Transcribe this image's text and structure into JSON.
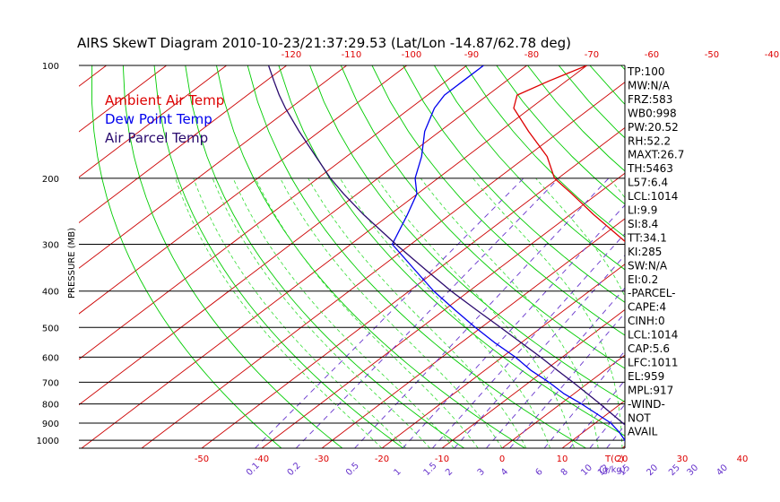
{
  "title": "AIRS SkewT Diagram 2010-10-23/21:37:29.53 (Lat/Lon -14.87/62.78 deg)",
  "ylabel": "PRESSURE (MB)",
  "colors": {
    "ambient": "#dd0000",
    "dewpoint": "#0000ee",
    "parcel": "#2a0a6e",
    "isotherm": "#cc0000",
    "dry_adiabat": "#00cc00",
    "moist_adiabat": "#33dd33",
    "mixing_ratio": "#6633cc",
    "grid": "#000000"
  },
  "legend": [
    {
      "label": "Ambient Air Temp",
      "color": "#dd0000"
    },
    {
      "label": "Dew Point Temp",
      "color": "#0000ee"
    },
    {
      "label": "Air Parcel Temp",
      "color": "#2a0a6e"
    }
  ],
  "indices": [
    "TP:100",
    "MW:N/A",
    "FRZ:583",
    "WB0:998",
    "PW:20.52",
    "RH:52.2",
    "MAXT:26.7",
    "TH:5463",
    "L57:6.4",
    "LCL:1014",
    "LI:9.9",
    "SI:8.4",
    "TT:34.1",
    "KI:285",
    "SW:N/A",
    "EI:0.2",
    "-PARCEL-",
    "CAPE:4",
    "CINH:0",
    "LCL:1014",
    "CAP:5.6",
    "LFC:1011",
    "EL:959",
    "MPL:917",
    "-WIND-",
    "NOT",
    "AVAIL"
  ],
  "chart_data": {
    "type": "line",
    "title": "AIRS SkewT Diagram 2010-10-23/21:37:29.53 (Lat/Lon -14.87/62.78 deg)",
    "ylabel": "PRESSURE (MB)",
    "y_scale": "log",
    "ylim": [
      1050,
      100
    ],
    "y_ticks": [
      100,
      200,
      300,
      400,
      500,
      600,
      700,
      800,
      900,
      1000
    ],
    "y_tick_labels": [
      "100",
      "200",
      "300",
      "400",
      "500",
      "600",
      "700",
      "800",
      "900",
      "1000"
    ],
    "top_temp_ticks": [
      -120,
      -110,
      -100,
      -90,
      -80,
      -70,
      -60,
      -50,
      -40
    ],
    "bottom_temp_ticks": [
      -50,
      -40,
      -30,
      -20,
      -10,
      0,
      10,
      20,
      30,
      40
    ],
    "bottom_temp_unit": "T(C)",
    "mixing_ratio_labels": [
      "0.1",
      "0.2",
      "0.5",
      "1",
      "1.5",
      "2",
      "3",
      "4",
      "6",
      "8",
      "10",
      "12",
      "15",
      "20",
      "25",
      "30",
      "40"
    ],
    "mixing_ratio_unit": "(g/kg)",
    "series": [
      {
        "name": "Ambient Air Temp",
        "points": [
          [
            1012,
            22.9
          ],
          [
            1000,
            22.0
          ],
          [
            950,
            20.5
          ],
          [
            900,
            22.5
          ],
          [
            850,
            23.6
          ],
          [
            800,
            24.0
          ],
          [
            750,
            22.5
          ],
          [
            700,
            19.1
          ],
          [
            650,
            15.2
          ],
          [
            600,
            11.4
          ],
          [
            550,
            7.5
          ],
          [
            500,
            3.3
          ],
          [
            450,
            -1.4
          ],
          [
            400,
            -6.8
          ],
          [
            350,
            -14.8
          ],
          [
            300,
            -23.8
          ],
          [
            250,
            -36.1
          ],
          [
            220,
            -44.3
          ],
          [
            200,
            -50.6
          ],
          [
            175,
            -56.6
          ],
          [
            150,
            -65.2
          ],
          [
            130,
            -72.8
          ],
          [
            120,
            -75.1
          ],
          [
            110,
            -72.9
          ],
          [
            100,
            -70.0
          ]
        ]
      },
      {
        "name": "Dew Point Temp",
        "points": [
          [
            1012,
            19.2
          ],
          [
            1000,
            18.7
          ],
          [
            950,
            15.9
          ],
          [
            900,
            12.6
          ],
          [
            850,
            8.2
          ],
          [
            800,
            3.5
          ],
          [
            750,
            -1.8
          ],
          [
            700,
            -6.7
          ],
          [
            650,
            -12.4
          ],
          [
            600,
            -17.8
          ],
          [
            550,
            -24.3
          ],
          [
            500,
            -31.0
          ],
          [
            450,
            -38.1
          ],
          [
            400,
            -45.9
          ],
          [
            350,
            -53.9
          ],
          [
            300,
            -63.1
          ],
          [
            250,
            -67.1
          ],
          [
            220,
            -70.1
          ],
          [
            200,
            -73.8
          ],
          [
            175,
            -77.5
          ],
          [
            150,
            -82.5
          ],
          [
            130,
            -86.0
          ],
          [
            120,
            -87.2
          ],
          [
            110,
            -87.2
          ],
          [
            100,
            -87.2
          ]
        ]
      },
      {
        "name": "Air Parcel Temp",
        "points": [
          [
            1012,
            22.9
          ],
          [
            1000,
            22.1
          ],
          [
            950,
            18.3
          ],
          [
            900,
            14.6
          ],
          [
            850,
            10.7
          ],
          [
            800,
            6.6
          ],
          [
            750,
            2.1
          ],
          [
            700,
            -2.7
          ],
          [
            650,
            -8.0
          ],
          [
            600,
            -13.6
          ],
          [
            550,
            -19.9
          ],
          [
            500,
            -26.8
          ],
          [
            450,
            -34.5
          ],
          [
            400,
            -43.0
          ],
          [
            350,
            -52.1
          ],
          [
            300,
            -62.5
          ],
          [
            250,
            -74.4
          ],
          [
            220,
            -82.3
          ],
          [
            200,
            -87.9
          ],
          [
            175,
            -95.1
          ],
          [
            150,
            -103.4
          ],
          [
            130,
            -110.8
          ],
          [
            120,
            -114.7
          ],
          [
            110,
            -118.7
          ],
          [
            100,
            -123.0
          ]
        ]
      }
    ]
  }
}
